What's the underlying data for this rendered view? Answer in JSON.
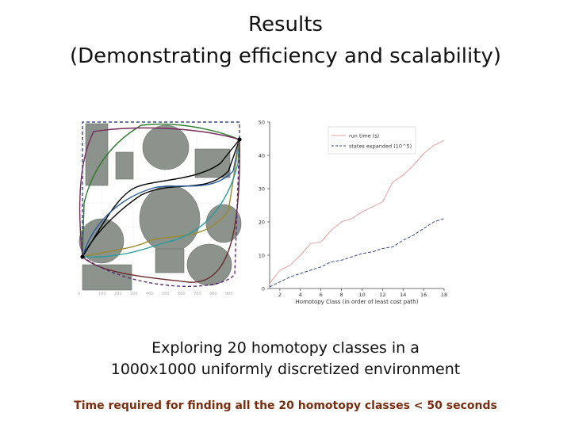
{
  "slide": {
    "title_line1": "Results",
    "title_line2": "(Demonstrating efficiency and scalability)",
    "caption_line1": "Exploring 20 homotopy classes in a",
    "caption_line2": "1000x1000 uniformly discretized environment",
    "footer": "Time required for finding all the 20 homotopy classes < 50 seconds"
  },
  "map_figure": {
    "obstacle_color": "#8c928c",
    "path_colors": [
      "#000000",
      "#2a7a2a",
      "#7a2a5a",
      "#2a5a9a",
      "#9a8a2a",
      "#6a2a2a",
      "#2a9a9a"
    ]
  },
  "chart_data": {
    "type": "line",
    "xlabel": "Homotopy Class (in order of least cost path)",
    "ylabel": "",
    "xlim": [
      1,
      18
    ],
    "ylim": [
      0,
      50
    ],
    "xticks": [
      2,
      4,
      6,
      8,
      10,
      12,
      14,
      16,
      18
    ],
    "yticks": [
      0,
      10,
      20,
      30,
      40,
      50
    ],
    "legend_position": "top-right",
    "x": [
      1,
      2,
      3,
      4,
      5,
      6,
      7,
      8,
      9,
      10,
      11,
      12,
      13,
      14,
      15,
      16,
      17,
      18
    ],
    "series": [
      {
        "name": "run time (s)",
        "color": "#e8a0a0",
        "style": "solid",
        "values": [
          1.5,
          5.5,
          7,
          10,
          13.5,
          14,
          17.5,
          20,
          21,
          23,
          24.5,
          26,
          32,
          34,
          37,
          40.5,
          43,
          44.5
        ]
      },
      {
        "name": "states expanded (10^5)",
        "color": "#3a4a8a",
        "style": "dashed",
        "values": [
          0.5,
          2,
          3.5,
          4.5,
          5.5,
          6.5,
          8,
          8.5,
          9.5,
          10.5,
          11,
          12,
          12.5,
          14.5,
          16,
          18,
          20,
          21
        ]
      }
    ]
  }
}
